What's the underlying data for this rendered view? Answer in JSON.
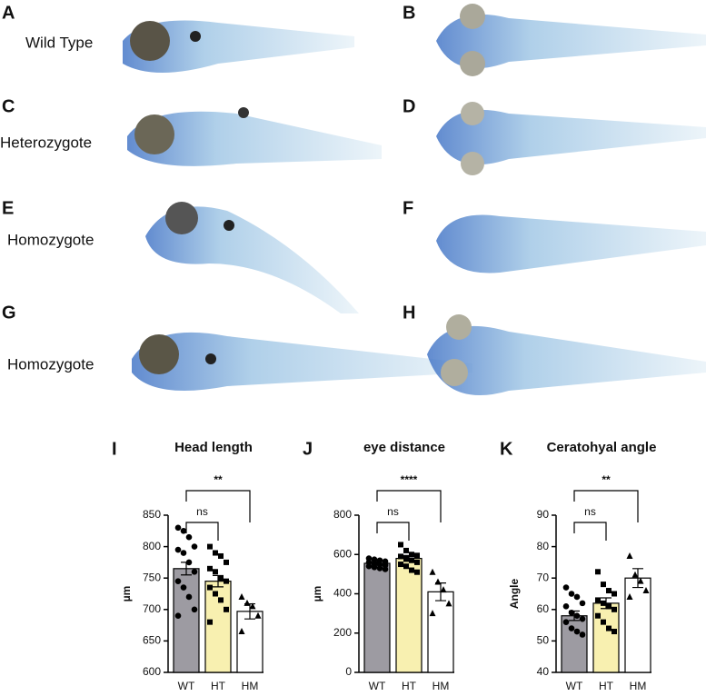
{
  "panels": [
    {
      "letter": "A",
      "label": "Wild Type"
    },
    {
      "letter": "B"
    },
    {
      "letter": "C",
      "label": "Heterozygote"
    },
    {
      "letter": "D"
    },
    {
      "letter": "E",
      "label": "Homozygote"
    },
    {
      "letter": "F"
    },
    {
      "letter": "G",
      "label": "Homozygote"
    },
    {
      "letter": "H"
    }
  ],
  "chart_data": [
    {
      "type": "bar",
      "panel_label": "I",
      "title": "Head length",
      "ylabel": "µm",
      "categories": [
        "WT",
        "HT",
        "HM"
      ],
      "colors": [
        "#9d9ba2",
        "#f8f0b0",
        "#ffffff"
      ],
      "markers": [
        "circle",
        "square",
        "triangle"
      ],
      "values": [
        765,
        745,
        697
      ],
      "errors": [
        10,
        9,
        12
      ],
      "points": [
        [
          830,
          825,
          815,
          800,
          795,
          790,
          775,
          760,
          745,
          735,
          720,
          700,
          690
        ],
        [
          800,
          790,
          785,
          775,
          765,
          760,
          750,
          745,
          735,
          725,
          715,
          700,
          680
        ],
        [
          720,
          710,
          705,
          690,
          665
        ]
      ],
      "ylim": [
        600,
        850
      ],
      "yticks": [
        600,
        650,
        700,
        750,
        800,
        850
      ],
      "significance": [
        "ns",
        "**"
      ]
    },
    {
      "type": "bar",
      "panel_label": "J",
      "title": "eye distance",
      "ylabel": "µm",
      "categories": [
        "WT",
        "HT",
        "HM"
      ],
      "colors": [
        "#9d9ba2",
        "#f8f0b0",
        "#ffffff"
      ],
      "markers": [
        "circle",
        "square",
        "triangle"
      ],
      "values": [
        555,
        580,
        410
      ],
      "errors": [
        10,
        15,
        45
      ],
      "points": [
        [
          580,
          575,
          570,
          565,
          560,
          555,
          550,
          545,
          540,
          535,
          530,
          525
        ],
        [
          650,
          620,
          600,
          595,
          590,
          580,
          570,
          560,
          550,
          540,
          520,
          510
        ],
        [
          510,
          460,
          420,
          350,
          300
        ]
      ],
      "ylim": [
        0,
        800
      ],
      "yticks": [
        0,
        200,
        400,
        600,
        800
      ],
      "significance": [
        "ns",
        "****"
      ]
    },
    {
      "type": "bar",
      "panel_label": "K",
      "title": "Ceratohyal angle",
      "ylabel": "Angle",
      "categories": [
        "WT",
        "HT",
        "HM"
      ],
      "colors": [
        "#9d9ba2",
        "#f8f0b0",
        "#ffffff"
      ],
      "markers": [
        "circle",
        "square",
        "triangle"
      ],
      "values": [
        58,
        62,
        70
      ],
      "errors": [
        1.5,
        1.7,
        3
      ],
      "points": [
        [
          67,
          65,
          64,
          62,
          61,
          59,
          58,
          57,
          56,
          54,
          53,
          52
        ],
        [
          72,
          68,
          66,
          65,
          63,
          62,
          61,
          60,
          58,
          56,
          54,
          53
        ],
        [
          77,
          71,
          69,
          66,
          64
        ]
      ],
      "ylim": [
        40,
        90
      ],
      "yticks": [
        40,
        50,
        60,
        70,
        80,
        90
      ],
      "significance": [
        "ns",
        "**"
      ]
    }
  ]
}
